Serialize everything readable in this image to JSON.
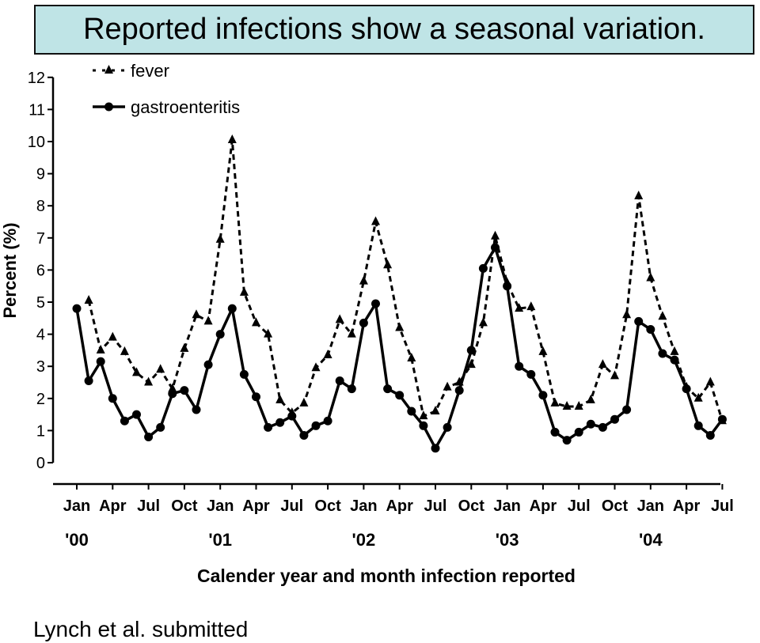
{
  "footnote": "Lynch et al. submitted",
  "chart_data": {
    "type": "line",
    "title": "Reported infections show a seasonal variation.",
    "xlabel": "Calender year and month infection reported",
    "ylabel": "Percent (%)",
    "ylim": [
      0,
      12
    ],
    "yticks": [
      0,
      1,
      2,
      3,
      4,
      5,
      6,
      7,
      8,
      9,
      10,
      11,
      12
    ],
    "month_tick_labels": [
      "Jan",
      "Apr",
      "Jul",
      "Oct",
      "Jan",
      "Apr",
      "Jul",
      "Oct",
      "Jan",
      "Apr",
      "Jul",
      "Oct",
      "Jan",
      "Apr",
      "Jul",
      "Oct",
      "Jan",
      "Apr",
      "Jul"
    ],
    "year_labels": [
      "'00",
      "'01",
      "'02",
      "'03",
      "'04"
    ],
    "series": [
      {
        "name": "fever",
        "style": "dashed",
        "marker": "triangle",
        "color": "#000000",
        "start_month_index": 1,
        "values": [
          5.05,
          3.5,
          3.9,
          3.45,
          2.8,
          2.5,
          2.9,
          2.3,
          3.55,
          4.6,
          4.4,
          6.95,
          10.05,
          5.3,
          4.35,
          4.0,
          1.95,
          1.55,
          1.85,
          2.95,
          3.35,
          4.45,
          4.0,
          5.65,
          7.5,
          6.15,
          4.2,
          3.25,
          1.45,
          1.6,
          2.35,
          2.5,
          3.05,
          4.35,
          7.05,
          5.6,
          4.8,
          4.85,
          3.45,
          1.85,
          1.75,
          1.75,
          1.95,
          3.05,
          2.7,
          4.6,
          8.3,
          5.75,
          4.55,
          3.45,
          2.35,
          2.0,
          2.5,
          1.3
        ]
      },
      {
        "name": "gastroenteritis",
        "style": "solid",
        "marker": "circle",
        "color": "#000000",
        "start_month_index": 0,
        "values": [
          4.8,
          2.55,
          3.15,
          2.0,
          1.3,
          1.5,
          0.8,
          1.1,
          2.15,
          2.25,
          1.65,
          3.05,
          4.0,
          4.8,
          2.75,
          2.05,
          1.1,
          1.25,
          1.45,
          0.85,
          1.15,
          1.3,
          2.55,
          2.3,
          4.35,
          4.95,
          2.3,
          2.1,
          1.6,
          1.15,
          0.45,
          1.1,
          2.25,
          3.5,
          6.05,
          6.7,
          5.5,
          3.0,
          2.75,
          2.1,
          0.95,
          0.7,
          0.95,
          1.2,
          1.1,
          1.35,
          1.65,
          4.4,
          4.15,
          3.4,
          3.2,
          2.3,
          1.15,
          0.85,
          1.35
        ]
      }
    ]
  }
}
